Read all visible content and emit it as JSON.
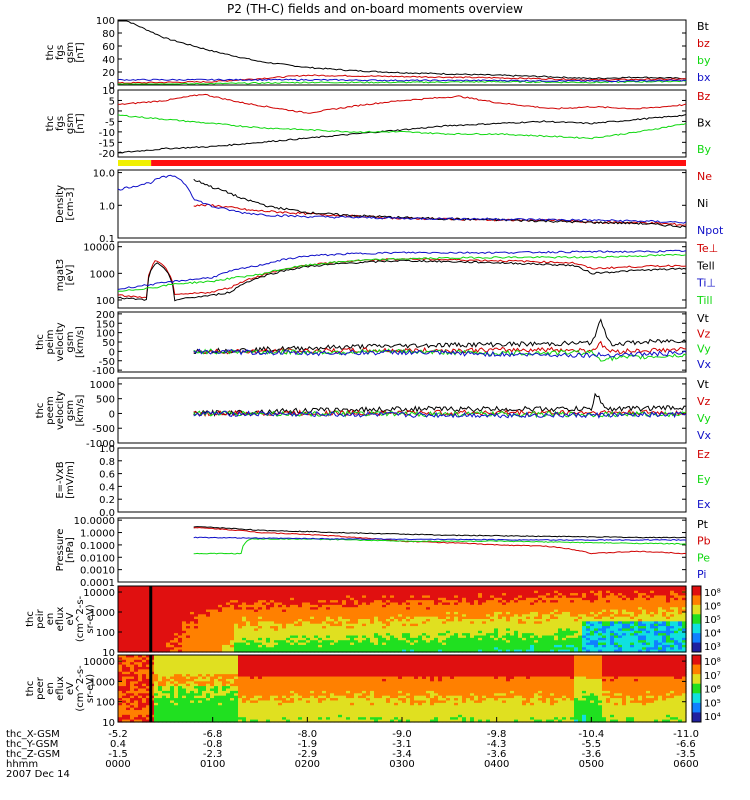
{
  "title": "P2 (TH-C) fields and on-board moments overview",
  "colors": {
    "black": "#000000",
    "red": "#d00000",
    "green": "#10d810",
    "blue": "#1010c8",
    "yellow": "#f0f000",
    "axis": "#000000"
  },
  "chart_data": [
    {
      "type": "line",
      "id": "bfield_mag",
      "ylabel": [
        "thc",
        "fgs",
        "gsm",
        "[nT]"
      ],
      "yticks": [
        "0",
        "20",
        "40",
        "60",
        "80",
        "100"
      ],
      "ylim": [
        0,
        100
      ],
      "legend": [
        {
          "name": "Bt",
          "color": "black"
        },
        {
          "name": "bz",
          "color": "red"
        },
        {
          "name": "by",
          "color": "green"
        },
        {
          "name": "bx",
          "color": "blue"
        }
      ],
      "series": [
        {
          "name": "Bt",
          "color": "black",
          "x": [
            0,
            0.5,
            1.0,
            1.5,
            2.0,
            2.5,
            3.0,
            3.5,
            4.0,
            4.5,
            5.0,
            5.5,
            6.0
          ],
          "y": [
            105,
            72,
            52,
            36,
            27,
            22,
            19,
            17,
            15,
            13,
            10,
            12,
            10
          ]
        },
        {
          "name": "bz",
          "color": "red",
          "x": [
            0,
            1.0,
            2.0,
            3.0,
            4.0,
            5.0,
            6.0
          ],
          "y": [
            3,
            5,
            15,
            13,
            11,
            8,
            9
          ]
        },
        {
          "name": "by",
          "color": "green",
          "x": [
            0,
            1.0,
            2.0,
            3.0,
            4.0,
            5.0,
            6.0
          ],
          "y": [
            1,
            2,
            4,
            4,
            5,
            4,
            6
          ]
        },
        {
          "name": "bx",
          "color": "blue",
          "x": [
            0,
            1.0,
            2.0,
            3.0,
            4.0,
            5.0,
            6.0
          ],
          "y": [
            8,
            8,
            8,
            7,
            7,
            6,
            7
          ]
        }
      ]
    },
    {
      "type": "line",
      "id": "bfield_comp",
      "ylabel": [
        "thc",
        "fgs",
        "gsm",
        "[nT]"
      ],
      "yticks": [
        "-20",
        "-15",
        "-10",
        "-5",
        "0",
        "5",
        "10"
      ],
      "ylim": [
        -22,
        10
      ],
      "legend": [
        {
          "name": "Bz",
          "color": "red"
        },
        {
          "name": "Bx",
          "color": "black"
        },
        {
          "name": "By",
          "color": "green"
        }
      ],
      "series": [
        {
          "name": "Bz",
          "color": "red",
          "x": [
            0,
            0.5,
            0.9,
            1.3,
            2.0,
            2.6,
            3.0,
            3.6,
            4.0,
            4.6,
            5.0,
            5.5,
            6.0
          ],
          "y": [
            3,
            5,
            8,
            4,
            -1,
            3,
            5,
            7,
            4,
            1,
            2,
            1,
            3
          ]
        },
        {
          "name": "Bx",
          "color": "black",
          "x": [
            0,
            0.5,
            1.0,
            1.5,
            2.0,
            2.5,
            3.0,
            3.5,
            4.0,
            4.5,
            5.0,
            5.5,
            6.0
          ],
          "y": [
            -20,
            -18,
            -17,
            -15,
            -13,
            -11,
            -9,
            -7,
            -6,
            -5,
            -6,
            -4,
            -2
          ]
        },
        {
          "name": "By",
          "color": "green",
          "x": [
            0,
            0.5,
            1.0,
            1.5,
            2.0,
            2.5,
            3.0,
            3.5,
            4.0,
            4.5,
            5.0,
            5.5,
            6.0
          ],
          "y": [
            -2,
            -4,
            -6,
            -8,
            -9,
            -10,
            -10,
            -11,
            -11,
            -12,
            -13,
            -10,
            -6
          ]
        }
      ]
    },
    {
      "type": "line",
      "id": "density",
      "ylabel": [
        "Density",
        "[cm-3]"
      ],
      "yscale": "log",
      "yticks": [
        "0.1",
        "1.0",
        "10.0"
      ],
      "ylim": [
        0.1,
        12
      ],
      "legend": [
        {
          "name": "Ne",
          "color": "red"
        },
        {
          "name": "Ni",
          "color": "black"
        },
        {
          "name": "Npot",
          "color": "blue"
        }
      ],
      "series": [
        {
          "name": "Ne",
          "color": "red",
          "x": [
            0.8,
            1.0,
            1.4,
            2.0,
            2.6,
            3.0,
            3.6,
            4.0,
            4.6,
            5.0,
            5.5,
            6.0
          ],
          "y": [
            1.0,
            1.0,
            0.7,
            0.55,
            0.45,
            0.4,
            0.38,
            0.35,
            0.35,
            0.3,
            0.3,
            0.25
          ]
        },
        {
          "name": "Ni",
          "color": "black",
          "x": [
            0.8,
            1.0,
            1.3,
            1.6,
            2.0,
            2.4,
            3.0,
            3.5,
            4.0,
            4.5,
            5.0,
            5.5,
            6.0
          ],
          "y": [
            6,
            3.5,
            1.6,
            0.9,
            0.6,
            0.5,
            0.42,
            0.38,
            0.36,
            0.33,
            0.3,
            0.28,
            0.22
          ]
        },
        {
          "name": "Npot",
          "color": "blue",
          "x": [
            0,
            0.2,
            0.35,
            0.45,
            0.6,
            0.8,
            1.0,
            1.3,
            1.6,
            2.0,
            3.0,
            4.0,
            5.0,
            5.5,
            6.0
          ],
          "y": [
            3,
            4,
            5,
            7,
            8,
            1.5,
            0.9,
            0.6,
            0.5,
            0.45,
            0.4,
            0.38,
            0.35,
            0.33,
            0.3
          ]
        }
      ]
    },
    {
      "type": "line",
      "id": "temperature",
      "ylabel": [
        "mgat3",
        "[eV]"
      ],
      "yscale": "log",
      "yticks": [
        "100",
        "1000",
        "10000"
      ],
      "ylim": [
        50,
        15000
      ],
      "legend": [
        {
          "name": "Te⊥",
          "color": "red"
        },
        {
          "name": "Tell",
          "color": "black"
        },
        {
          "name": "Ti⊥",
          "color": "blue"
        },
        {
          "name": "Till",
          "color": "green"
        }
      ],
      "series": [
        {
          "name": "Te⊥",
          "color": "red",
          "x": [
            0,
            0.3,
            0.4,
            0.6,
            1.0,
            1.2,
            1.5,
            2.0,
            2.5,
            3.0,
            4.0,
            4.8,
            5.0,
            5.5,
            6.0
          ],
          "y": [
            150,
            120,
            3000,
            150,
            200,
            300,
            800,
            2000,
            3000,
            3500,
            3000,
            2500,
            1500,
            1800,
            2000
          ]
        },
        {
          "name": "Tell",
          "color": "black",
          "x": [
            0,
            0.3,
            0.4,
            0.6,
            1.0,
            1.2,
            1.5,
            2.0,
            2.5,
            3.0,
            4.0,
            4.8,
            5.0,
            5.5,
            6.0
          ],
          "y": [
            120,
            100,
            2500,
            100,
            150,
            200,
            700,
            1800,
            2500,
            3000,
            2500,
            2000,
            1000,
            1300,
            1500
          ]
        },
        {
          "name": "Ti⊥",
          "color": "blue",
          "x": [
            0,
            0.4,
            0.6,
            1.0,
            1.5,
            2.0,
            2.5,
            3.0,
            4.0,
            5.0,
            5.5,
            6.0
          ],
          "y": [
            250,
            400,
            500,
            700,
            2000,
            4500,
            5500,
            6000,
            6000,
            6500,
            6500,
            7000
          ]
        },
        {
          "name": "Till",
          "color": "green",
          "x": [
            0,
            0.4,
            0.6,
            1.0,
            1.5,
            2.0,
            2.5,
            3.0,
            4.0,
            5.0,
            5.5,
            6.0
          ],
          "y": [
            200,
            300,
            400,
            500,
            900,
            2000,
            3000,
            3500,
            4000,
            4000,
            4500,
            5000
          ]
        }
      ]
    },
    {
      "type": "line",
      "id": "peim_velocity",
      "ylabel": [
        "thc",
        "peim",
        "velocity",
        "gsm",
        "[km/s]"
      ],
      "yticks": [
        "-100",
        "-50",
        "0",
        "50",
        "100",
        "150",
        "200"
      ],
      "ylim": [
        -110,
        210
      ],
      "legend": [
        {
          "name": "Vt",
          "color": "black"
        },
        {
          "name": "Vz",
          "color": "red"
        },
        {
          "name": "Vy",
          "color": "green"
        },
        {
          "name": "Vx",
          "color": "blue"
        }
      ],
      "series": [
        {
          "name": "Vt",
          "color": "black",
          "x": [
            0.8,
            1.5,
            2.5,
            3.5,
            4.5,
            5.0,
            5.1,
            5.2,
            6.0
          ],
          "y": [
            0,
            10,
            25,
            35,
            40,
            45,
            160,
            40,
            60
          ]
        },
        {
          "name": "Vz",
          "color": "red",
          "x": [
            0.8,
            1.5,
            2.5,
            3.5,
            4.5,
            5.0,
            5.1,
            5.2,
            6.0
          ],
          "y": [
            0,
            0,
            5,
            5,
            10,
            5,
            40,
            0,
            10
          ]
        },
        {
          "name": "Vy",
          "color": "green",
          "x": [
            0.8,
            2.0,
            3.0,
            4.0,
            5.0,
            5.1,
            6.0
          ],
          "y": [
            0,
            -5,
            0,
            -10,
            -5,
            -40,
            -20
          ]
        },
        {
          "name": "Vx",
          "color": "blue",
          "x": [
            0.8,
            2.0,
            3.0,
            4.0,
            5.0,
            6.0
          ],
          "y": [
            0,
            -10,
            -5,
            -15,
            -20,
            -10
          ]
        }
      ]
    },
    {
      "type": "line",
      "id": "peem_velocity",
      "ylabel": [
        "thc",
        "peem",
        "velocity",
        "gsm",
        "[km/s]"
      ],
      "yticks": [
        "-1000",
        "-500",
        "0",
        "500",
        "1000"
      ],
      "ylim": [
        -1000,
        1200
      ],
      "legend": [
        {
          "name": "Vt",
          "color": "black"
        },
        {
          "name": "Vz",
          "color": "red"
        },
        {
          "name": "Vy",
          "color": "green"
        },
        {
          "name": "Vx",
          "color": "blue"
        }
      ],
      "series": [
        {
          "name": "Vt",
          "color": "black",
          "x": [
            0.8,
            2.0,
            3.0,
            4.0,
            5.0,
            5.05,
            5.15,
            6.0
          ],
          "y": [
            0,
            100,
            150,
            150,
            150,
            700,
            150,
            200
          ]
        },
        {
          "name": "Vz",
          "color": "red",
          "x": [
            0.8,
            3.0,
            5.0,
            6.0
          ],
          "y": [
            0,
            20,
            30,
            20
          ]
        },
        {
          "name": "Vy",
          "color": "green",
          "x": [
            0.8,
            3.0,
            5.0,
            6.0
          ],
          "y": [
            0,
            -20,
            -30,
            -20
          ]
        },
        {
          "name": "Vx",
          "color": "blue",
          "x": [
            0.8,
            3.0,
            5.0,
            6.0
          ],
          "y": [
            0,
            -50,
            -60,
            -40
          ]
        }
      ]
    },
    {
      "type": "line",
      "id": "efield",
      "ylabel": [
        "E=-VxB",
        "[mV/m]"
      ],
      "yticks": [
        "0.0",
        "0.2",
        "0.4",
        "0.6",
        "0.8",
        "1.0"
      ],
      "ylim": [
        0,
        1
      ],
      "legend": [
        {
          "name": "Ez",
          "color": "red"
        },
        {
          "name": "Ey",
          "color": "green"
        },
        {
          "name": "Ex",
          "color": "blue"
        }
      ],
      "series": []
    },
    {
      "type": "line",
      "id": "pressure",
      "ylabel": [
        "Pressure",
        "[nPa]"
      ],
      "yscale": "log",
      "yticks": [
        "0.0001",
        "0.0010",
        "0.0100",
        "0.1000",
        "1.0000",
        "10.0000"
      ],
      "ylim": [
        0.0001,
        15
      ],
      "legend": [
        {
          "name": "Pt",
          "color": "black"
        },
        {
          "name": "Pb",
          "color": "red"
        },
        {
          "name": "Pe",
          "color": "green"
        },
        {
          "name": "Pi",
          "color": "blue"
        }
      ],
      "series": [
        {
          "name": "Pt",
          "color": "black",
          "x": [
            0.8,
            1.5,
            2.5,
            3.5,
            4.5,
            5.5,
            6.0
          ],
          "y": [
            3,
            1.5,
            0.9,
            0.6,
            0.5,
            0.4,
            0.4
          ]
        },
        {
          "name": "Pb",
          "color": "red",
          "x": [
            0.8,
            1.5,
            2.5,
            3.0,
            3.5,
            4.0,
            4.5,
            5.0,
            5.5,
            6.0
          ],
          "y": [
            2.5,
            1.0,
            0.4,
            0.2,
            0.15,
            0.1,
            0.08,
            0.02,
            0.03,
            0.02
          ]
        },
        {
          "name": "Pe",
          "color": "green",
          "x": [
            0.8,
            1.0,
            1.3,
            1.4,
            2.0,
            3.0,
            4.0,
            5.0,
            6.0
          ],
          "y": [
            0.02,
            0.02,
            0.02,
            0.3,
            0.3,
            0.2,
            0.2,
            0.15,
            0.12
          ]
        },
        {
          "name": "Pi",
          "color": "blue",
          "x": [
            0.8,
            1.5,
            2.5,
            3.5,
            4.5,
            5.5,
            6.0
          ],
          "y": [
            0.4,
            0.35,
            0.3,
            0.28,
            0.25,
            0.25,
            0.25
          ]
        }
      ]
    },
    {
      "type": "heatmap",
      "id": "peir_spectrogram",
      "ylabel": [
        "thc",
        "peir",
        "en",
        "eflux",
        "eV",
        "(cm^2-s-",
        "sr-eV)"
      ],
      "yticks": [
        "10",
        "100",
        "1000",
        "10000"
      ],
      "yscale": "log",
      "colorbar_ticks": [
        "10³",
        "10⁴",
        "10⁵",
        "10⁶",
        "10⁸"
      ]
    },
    {
      "type": "heatmap",
      "id": "peer_spectrogram",
      "ylabel": [
        "thc",
        "peer",
        "en",
        "eflux",
        "eV",
        "(cm^2-s-",
        "sr-eV)"
      ],
      "yticks": [
        "10",
        "100",
        "1000",
        "10000"
      ],
      "yscale": "log",
      "colorbar_ticks": [
        "10⁴",
        "10⁵",
        "10⁶",
        "10⁷",
        "10⁸"
      ]
    }
  ],
  "xaxis": {
    "rows": [
      {
        "label": "thc_X-GSM",
        "values": [
          "-5.2",
          "-6.8",
          "-8.0",
          "-9.0",
          "-9.8",
          "-10.4",
          "-11.0"
        ]
      },
      {
        "label": "thc_Y-GSM",
        "values": [
          "0.4",
          "-0.8",
          "-1.9",
          "-3.1",
          "-4.3",
          "-5.5",
          "-6.6"
        ]
      },
      {
        "label": "thc_Z-GSM",
        "values": [
          "-1.5",
          "-2.3",
          "-2.9",
          "-3.4",
          "-3.6",
          "-3.6",
          "-3.5"
        ]
      },
      {
        "label": "hhmm",
        "values": [
          "0000",
          "0100",
          "0200",
          "0300",
          "0400",
          "0500",
          "0600"
        ]
      }
    ],
    "date": "2007 Dec 14"
  }
}
